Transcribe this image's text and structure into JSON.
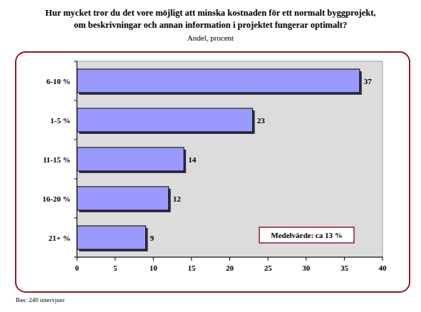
{
  "chart_data": {
    "type": "bar",
    "orientation": "horizontal",
    "title": "Hur mycket tror du det vore möjligt att minska kostnaden för ett normalt byggprojekt, om beskrivningar och annan information i projektet fungerar optimalt?",
    "subtitle": "Andel, procent",
    "categories": [
      "6-10 %",
      "1-5 %",
      "11-15 %",
      "16-20 %",
      "21+ %"
    ],
    "values": [
      37,
      23,
      14,
      12,
      9
    ],
    "color": "#9999ff",
    "xlim": [
      0,
      40
    ],
    "xticks": [
      0,
      5,
      10,
      15,
      20,
      25,
      30,
      35,
      40
    ],
    "grid": false,
    "data_labels": true,
    "annotation": "Medelvärde: ca 13 %",
    "footnote": "Bas: 240 intervjuer"
  }
}
